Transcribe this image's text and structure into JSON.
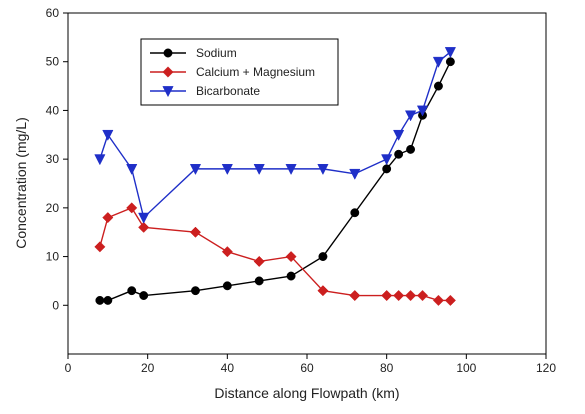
{
  "chart_data": {
    "type": "line",
    "title": "",
    "xlabel": "Distance along Flowpath (km)",
    "ylabel": "Concentration (mg/L)",
    "xlim": [
      0,
      120
    ],
    "ylim": [
      -10,
      60
    ],
    "xticks": [
      0,
      20,
      40,
      60,
      80,
      100,
      120
    ],
    "yticks": [
      0,
      10,
      20,
      30,
      40,
      50,
      60
    ],
    "grid": false,
    "legend_position": "top-left",
    "series": [
      {
        "name": "Sodium",
        "color": "#000000",
        "marker": "circle",
        "x": [
          8,
          10,
          16,
          19,
          32,
          40,
          48,
          56,
          64,
          72,
          80,
          83,
          86,
          89,
          93,
          96
        ],
        "y": [
          1,
          1,
          3,
          2,
          3,
          4,
          5,
          6,
          10,
          19,
          28,
          31,
          32,
          39,
          45,
          50
        ]
      },
      {
        "name": "Calcium + Magnesium",
        "color": "#cc1f1f",
        "marker": "diamond",
        "x": [
          8,
          10,
          16,
          19,
          32,
          40,
          48,
          56,
          64,
          72,
          80,
          83,
          86,
          89,
          93,
          96
        ],
        "y": [
          12,
          18,
          20,
          16,
          15,
          11,
          9,
          10,
          3,
          2,
          2,
          2,
          2,
          2,
          1,
          1
        ]
      },
      {
        "name": "Bicarbonate",
        "color": "#1f2fc8",
        "marker": "triangle-down",
        "x": [
          8,
          10,
          16,
          19,
          32,
          40,
          48,
          56,
          64,
          72,
          80,
          83,
          86,
          89,
          93,
          96
        ],
        "y": [
          30,
          35,
          28,
          18,
          28,
          28,
          28,
          28,
          28,
          27,
          30,
          35,
          39,
          40,
          50,
          52
        ]
      }
    ]
  }
}
